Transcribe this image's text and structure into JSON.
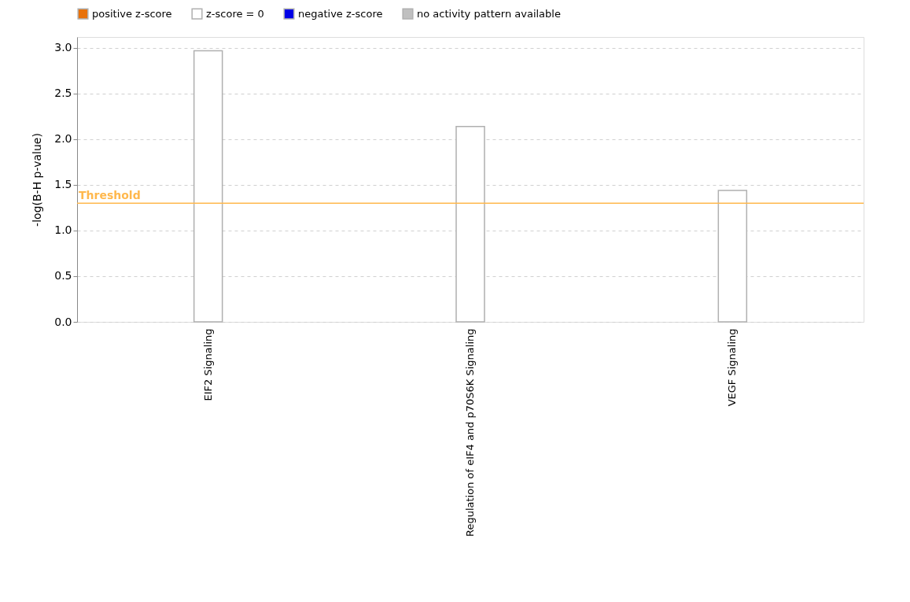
{
  "chart_data": {
    "type": "bar",
    "ylabel": "-log(B-H p-value)",
    "categories": [
      "EIF2 Signaling",
      "Regulation of eIF4 and p70S6K Signaling",
      "VEGF Signaling"
    ],
    "series": [
      {
        "name": "positive z-score",
        "color": "#e8710a",
        "values": [
          null,
          null,
          null
        ]
      },
      {
        "name": "z-score = 0",
        "color": "#ffffff",
        "values": [
          2.97,
          2.14,
          1.44
        ]
      },
      {
        "name": "negative z-score",
        "color": "#0000e6",
        "values": [
          null,
          null,
          null
        ]
      },
      {
        "name": "no activity pattern available",
        "color": "#c0c0c0",
        "values": [
          null,
          null,
          null
        ]
      }
    ],
    "ylim": [
      0,
      3.12
    ],
    "yticks": [
      {
        "value": 0,
        "label": "0.0"
      },
      0.5,
      {
        "value": 1,
        "label": "1.0"
      },
      1.5,
      {
        "value": 2,
        "label": "2.0"
      },
      2.5,
      {
        "value": 3,
        "label": "3.0"
      }
    ],
    "ref_lines": [
      {
        "axis": "y",
        "value": 1.3,
        "label": "Threshold",
        "color": "#ffb84d"
      }
    ],
    "grid": "y",
    "legend": "top left"
  }
}
